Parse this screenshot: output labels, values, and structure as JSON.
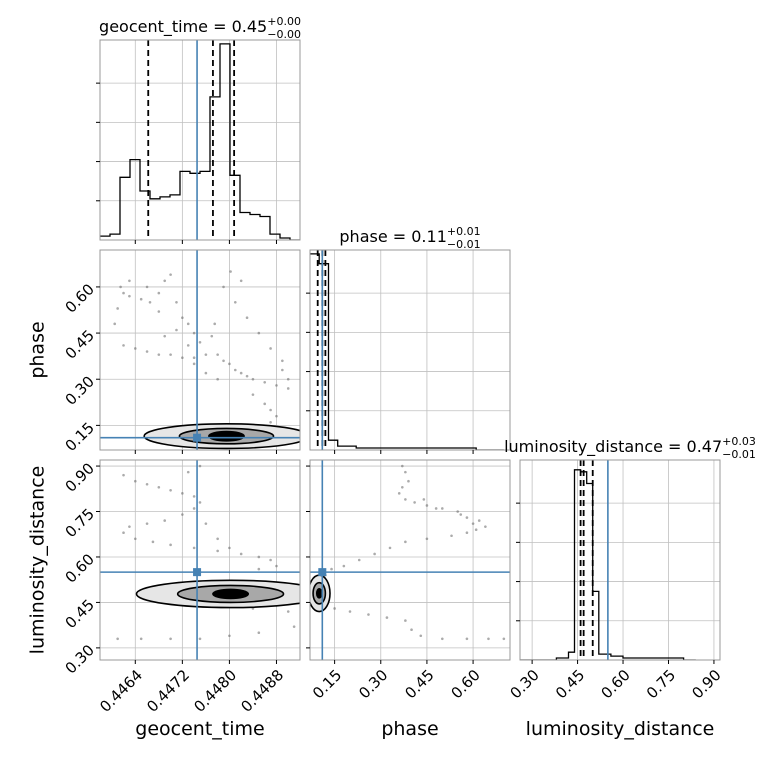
{
  "chart_data": {
    "type": "corner",
    "parameters": [
      "geocent_time",
      "phase",
      "luminosity_distance"
    ],
    "truths": {
      "geocent_time": 0.44745,
      "phase": 0.11,
      "luminosity_distance": 0.55
    },
    "titles": {
      "geocent_time": {
        "base": "geocent_time = 0.45",
        "plus": "+0.00",
        "minus": "−0.00"
      },
      "phase": {
        "base": "phase = 0.11",
        "plus": "+0.01",
        "minus": "−0.01"
      },
      "luminosity_distance": {
        "base": "luminosity_distance = 0.47",
        "plus": "+0.03",
        "minus": "−0.01"
      }
    },
    "axis_labels": {
      "x": [
        "geocent_time",
        "phase",
        "luminosity_distance"
      ],
      "y": [
        "phase",
        "luminosity_distance"
      ]
    },
    "ranges": {
      "geocent_time": [
        0.4458,
        0.4492
      ],
      "phase": [
        0.07,
        0.72
      ],
      "luminosity_distance": [
        0.26,
        0.92
      ]
    },
    "ticks": {
      "geocent_time": {
        "values": [
          0.4464,
          0.4472,
          0.448,
          0.4488
        ],
        "labels": [
          "0.4464",
          "0.4472",
          "0.4480",
          "0.4488"
        ]
      },
      "phase": {
        "values": [
          0.15,
          0.3,
          0.45,
          0.6
        ],
        "labels": [
          "0.15",
          "0.30",
          "0.45",
          "0.60"
        ]
      },
      "luminosity_distance": {
        "values": [
          0.3,
          0.45,
          0.6,
          0.75,
          0.9
        ],
        "labels": [
          "0.30",
          "0.45",
          "0.60",
          "0.75",
          "0.90"
        ]
      }
    },
    "quantiles": {
      "geocent_time": [
        0.44662,
        0.44772,
        0.44808
      ],
      "phase": [
        0.095,
        0.11,
        0.12
      ],
      "luminosity_distance": [
        0.46,
        0.47,
        0.5
      ]
    },
    "histograms": {
      "geocent_time": {
        "edges": [
          0.4458,
          0.44597,
          0.44614,
          0.44631,
          0.44648,
          0.44665,
          0.44682,
          0.44699,
          0.44716,
          0.44733,
          0.4475,
          0.44767,
          0.44784,
          0.44801,
          0.44818,
          0.44835,
          0.44852,
          0.44869,
          0.44886,
          0.44903,
          0.4492
        ],
        "counts": [
          0.02,
          0.03,
          0.32,
          0.41,
          0.25,
          0.21,
          0.22,
          0.23,
          0.35,
          0.34,
          0.35,
          0.73,
          1.0,
          0.33,
          0.14,
          0.13,
          0.12,
          0.03,
          0.01,
          0.0
        ]
      },
      "phase": {
        "edges": [
          0.07,
          0.1,
          0.13,
          0.16,
          0.19,
          0.22,
          0.25,
          0.28,
          0.31,
          0.34,
          0.37,
          0.4,
          0.43,
          0.46,
          0.49,
          0.52,
          0.55,
          0.58,
          0.61,
          0.64,
          0.67,
          0.7
        ],
        "counts": [
          1.0,
          0.95,
          0.05,
          0.02,
          0.02,
          0.01,
          0.01,
          0.01,
          0.01,
          0.01,
          0.01,
          0.01,
          0.01,
          0.01,
          0.01,
          0.01,
          0.01,
          0.01,
          0.0,
          0.0,
          0.0
        ]
      },
      "luminosity_distance": {
        "edges": [
          0.26,
          0.3,
          0.34,
          0.38,
          0.42,
          0.44,
          0.46,
          0.48,
          0.5,
          0.52,
          0.56,
          0.6,
          0.64,
          0.68,
          0.72,
          0.76,
          0.8,
          0.84
        ],
        "counts": [
          0.0,
          0.0,
          0.0,
          0.01,
          0.04,
          0.97,
          0.96,
          0.9,
          0.35,
          0.03,
          0.02,
          0.01,
          0.01,
          0.01,
          0.01,
          0.01,
          0.0
        ]
      }
    },
    "hist_ylim": [
      0,
      1.02
    ],
    "hist_yticks": [
      0.2,
      0.4,
      0.6,
      0.8
    ],
    "scatter": {
      "phase_vs_geocent_time": [
        [
          0.44615,
          0.6
        ],
        [
          0.4462,
          0.58
        ],
        [
          0.4463,
          0.57
        ],
        [
          0.4465,
          0.56
        ],
        [
          0.44665,
          0.55
        ],
        [
          0.4468,
          0.58
        ],
        [
          0.4469,
          0.62
        ],
        [
          0.447,
          0.64
        ],
        [
          0.4471,
          0.55
        ],
        [
          0.4472,
          0.5
        ],
        [
          0.4473,
          0.48
        ],
        [
          0.4474,
          0.45
        ],
        [
          0.4462,
          0.41
        ],
        [
          0.4464,
          0.4
        ],
        [
          0.4466,
          0.39
        ],
        [
          0.4468,
          0.38
        ],
        [
          0.447,
          0.38
        ],
        [
          0.4472,
          0.37
        ],
        [
          0.4474,
          0.37
        ],
        [
          0.4476,
          0.38
        ],
        [
          0.4478,
          0.38
        ],
        [
          0.4479,
          0.36
        ],
        [
          0.448,
          0.35
        ],
        [
          0.4481,
          0.33
        ],
        [
          0.4482,
          0.32
        ],
        [
          0.4483,
          0.31
        ],
        [
          0.4484,
          0.3
        ],
        [
          0.4486,
          0.29
        ],
        [
          0.4488,
          0.28
        ],
        [
          0.449,
          0.27
        ],
        [
          0.4484,
          0.25
        ],
        [
          0.4486,
          0.22
        ],
        [
          0.4487,
          0.2
        ],
        [
          0.4488,
          0.18
        ],
        [
          0.4487,
          0.16
        ],
        [
          0.4485,
          0.14
        ],
        [
          0.4479,
          0.6
        ],
        [
          0.4481,
          0.55
        ],
        [
          0.4483,
          0.5
        ],
        [
          0.4485,
          0.45
        ],
        [
          0.4487,
          0.4
        ],
        [
          0.4489,
          0.36
        ],
        [
          0.4476,
          0.32
        ],
        [
          0.4478,
          0.3
        ],
        [
          0.4474,
          0.35
        ],
        [
          0.4475,
          0.42
        ],
        [
          0.4471,
          0.46
        ],
        [
          0.4468,
          0.52
        ],
        [
          0.4463,
          0.62
        ],
        [
          0.4466,
          0.6
        ],
        [
          0.4461,
          0.53
        ],
        [
          0.44605,
          0.48
        ],
        [
          0.4469,
          0.44
        ],
        [
          0.4473,
          0.41
        ],
        [
          0.44802,
          0.65
        ],
        [
          0.4482,
          0.62
        ],
        [
          0.44775,
          0.48
        ],
        [
          0.4477,
          0.44
        ],
        [
          0.4489,
          0.33
        ],
        [
          0.449,
          0.3
        ]
      ],
      "luminosity_distance_vs_geocent_time": [
        [
          0.4462,
          0.87
        ],
        [
          0.4464,
          0.85
        ],
        [
          0.4466,
          0.84
        ],
        [
          0.4468,
          0.83
        ],
        [
          0.447,
          0.82
        ],
        [
          0.4472,
          0.81
        ],
        [
          0.4474,
          0.8
        ],
        [
          0.4475,
          0.78
        ],
        [
          0.4474,
          0.76
        ],
        [
          0.4472,
          0.74
        ],
        [
          0.4469,
          0.72
        ],
        [
          0.4466,
          0.71
        ],
        [
          0.4463,
          0.7
        ],
        [
          0.4462,
          0.68
        ],
        [
          0.4464,
          0.66
        ],
        [
          0.4467,
          0.65
        ],
        [
          0.447,
          0.64
        ],
        [
          0.4474,
          0.63
        ],
        [
          0.4478,
          0.62
        ],
        [
          0.4482,
          0.61
        ],
        [
          0.4485,
          0.6
        ],
        [
          0.4487,
          0.59
        ],
        [
          0.4488,
          0.57
        ],
        [
          0.4485,
          0.56
        ],
        [
          0.4486,
          0.45
        ],
        [
          0.4488,
          0.44
        ],
        [
          0.449,
          0.42
        ],
        [
          0.4484,
          0.43
        ],
        [
          0.4482,
          0.44
        ],
        [
          0.4461,
          0.33
        ],
        [
          0.4465,
          0.33
        ],
        [
          0.447,
          0.33
        ],
        [
          0.4475,
          0.33
        ],
        [
          0.448,
          0.34
        ],
        [
          0.4485,
          0.35
        ],
        [
          0.4491,
          0.37
        ],
        [
          0.4475,
          0.9
        ],
        [
          0.4473,
          0.88
        ],
        [
          0.4478,
          0.66
        ],
        [
          0.448,
          0.63
        ],
        [
          0.4476,
          0.71
        ]
      ],
      "luminosity_distance_vs_phase": [
        [
          0.37,
          0.9
        ],
        [
          0.38,
          0.88
        ],
        [
          0.39,
          0.85
        ],
        [
          0.37,
          0.83
        ],
        [
          0.36,
          0.81
        ],
        [
          0.38,
          0.79
        ],
        [
          0.41,
          0.78
        ],
        [
          0.45,
          0.77
        ],
        [
          0.5,
          0.76
        ],
        [
          0.55,
          0.75
        ],
        [
          0.58,
          0.73
        ],
        [
          0.6,
          0.71
        ],
        [
          0.61,
          0.69
        ],
        [
          0.58,
          0.68
        ],
        [
          0.53,
          0.67
        ],
        [
          0.45,
          0.66
        ],
        [
          0.38,
          0.65
        ],
        [
          0.33,
          0.63
        ],
        [
          0.28,
          0.61
        ],
        [
          0.23,
          0.59
        ],
        [
          0.18,
          0.57
        ],
        [
          0.14,
          0.56
        ],
        [
          0.12,
          0.54
        ],
        [
          0.1,
          0.52
        ],
        [
          0.11,
          0.46
        ],
        [
          0.15,
          0.43
        ],
        [
          0.2,
          0.42
        ],
        [
          0.26,
          0.41
        ],
        [
          0.32,
          0.4
        ],
        [
          0.38,
          0.39
        ],
        [
          0.4,
          0.36
        ],
        [
          0.43,
          0.34
        ],
        [
          0.5,
          0.33
        ],
        [
          0.58,
          0.33
        ],
        [
          0.65,
          0.33
        ],
        [
          0.7,
          0.33
        ],
        [
          0.64,
          0.7
        ],
        [
          0.62,
          0.72
        ],
        [
          0.56,
          0.74
        ],
        [
          0.48,
          0.76
        ],
        [
          0.44,
          0.79
        ]
      ]
    },
    "contours": {
      "phase_vs_geocent_time": {
        "center": [
          0.44795,
          0.115
        ],
        "levels": [
          [
            0.0014,
            0.04
          ],
          [
            0.0008,
            0.025
          ],
          [
            0.0003,
            0.015
          ]
        ]
      },
      "luminosity_distance_vs_geocent_time": {
        "center": [
          0.44802,
          0.478
        ],
        "levels": [
          [
            0.0016,
            0.045
          ],
          [
            0.0009,
            0.028
          ],
          [
            0.0003,
            0.015
          ]
        ]
      },
      "luminosity_distance_vs_phase": {
        "center": [
          0.1,
          0.48
        ],
        "levels": [
          [
            0.035,
            0.06
          ],
          [
            0.02,
            0.035
          ],
          [
            0.008,
            0.015
          ]
        ]
      }
    },
    "grid": true,
    "colors": {
      "truth": "#4682b4",
      "hist": "#000000",
      "scatter": "#666666",
      "grid": "#c0c0c0"
    }
  }
}
